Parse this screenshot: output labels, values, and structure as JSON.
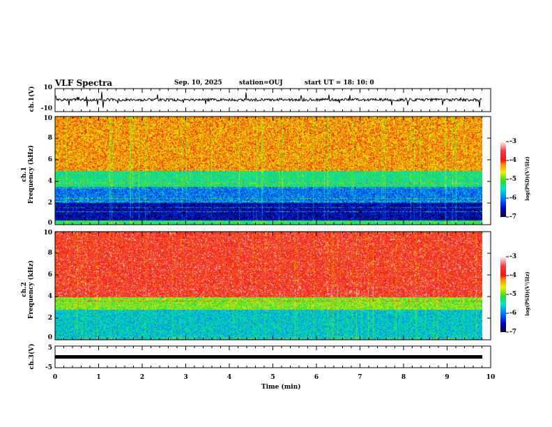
{
  "header": {
    "title": "VLF Spectra",
    "date": "Sep. 10, 2025",
    "station": "station=OUJ",
    "start": "start  UT =   18: 10: 0"
  },
  "chart_data": [
    {
      "type": "line",
      "name": "ch1-waveform",
      "ylabel": "ch.1(V)",
      "ylim": [
        -10,
        10
      ],
      "yticks": [
        "10",
        "-10"
      ],
      "xlim": [
        0,
        10
      ],
      "description_values": {
        "baseline_v": 0,
        "data_end_min": 9.8
      }
    },
    {
      "type": "heatmap",
      "name": "ch1-spectrogram",
      "ylabel_top": "ch.1",
      "ylabel": "Frequency (kHz)",
      "ylim": [
        0,
        10
      ],
      "yticks": [
        "0",
        "2",
        "4",
        "6",
        "8",
        "10"
      ],
      "xlim": [
        0,
        10
      ],
      "colorbar": {
        "label": "log(PSD)(V²/Hz)",
        "range": [
          -7,
          -3
        ],
        "ticks": [
          "-3",
          "-4",
          "-5",
          "-6",
          "-7"
        ]
      },
      "bands_log_psd": [
        {
          "freq_khz": [
            0,
            0.4
          ],
          "level": -5.2
        },
        {
          "freq_khz": [
            0.4,
            2.0
          ],
          "level": -6.6
        },
        {
          "freq_khz": [
            2.0,
            3.5
          ],
          "level": -6.0
        },
        {
          "freq_khz": [
            3.5,
            5.0
          ],
          "level": -5.3
        },
        {
          "freq_khz": [
            5.0,
            10
          ],
          "level": -4.3
        }
      ]
    },
    {
      "type": "heatmap",
      "name": "ch2-spectrogram",
      "ylabel_top": "ch.2",
      "ylabel": "Frequency (kHz)",
      "ylim": [
        0,
        10
      ],
      "yticks": [
        "0",
        "2",
        "4",
        "6",
        "8",
        "10"
      ],
      "xlim": [
        0,
        10
      ],
      "colorbar": {
        "label": "log(PSD)(V²/Hz)",
        "range": [
          -7,
          -3
        ],
        "ticks": [
          "-3",
          "-4",
          "-5",
          "-6",
          "-7"
        ]
      },
      "bands_log_psd": [
        {
          "freq_khz": [
            0,
            2.8
          ],
          "level": -5.6
        },
        {
          "freq_khz": [
            2.8,
            4.0
          ],
          "level": -4.9
        },
        {
          "freq_khz": [
            4.0,
            10
          ],
          "level": -3.8
        }
      ]
    },
    {
      "type": "line",
      "name": "ch3-waveform",
      "ylabel": "ch.3(V)",
      "ylim": [
        -5,
        5
      ],
      "yticks": [
        "5",
        "-5"
      ],
      "xlim": [
        0,
        10
      ],
      "description_values": {
        "constant_v": 0,
        "data_end_min": 9.8
      }
    }
  ],
  "xaxis": {
    "label": "Time (min)",
    "ticks": [
      "0",
      "1",
      "2",
      "3",
      "4",
      "5",
      "6",
      "7",
      "8",
      "9",
      "10"
    ]
  }
}
